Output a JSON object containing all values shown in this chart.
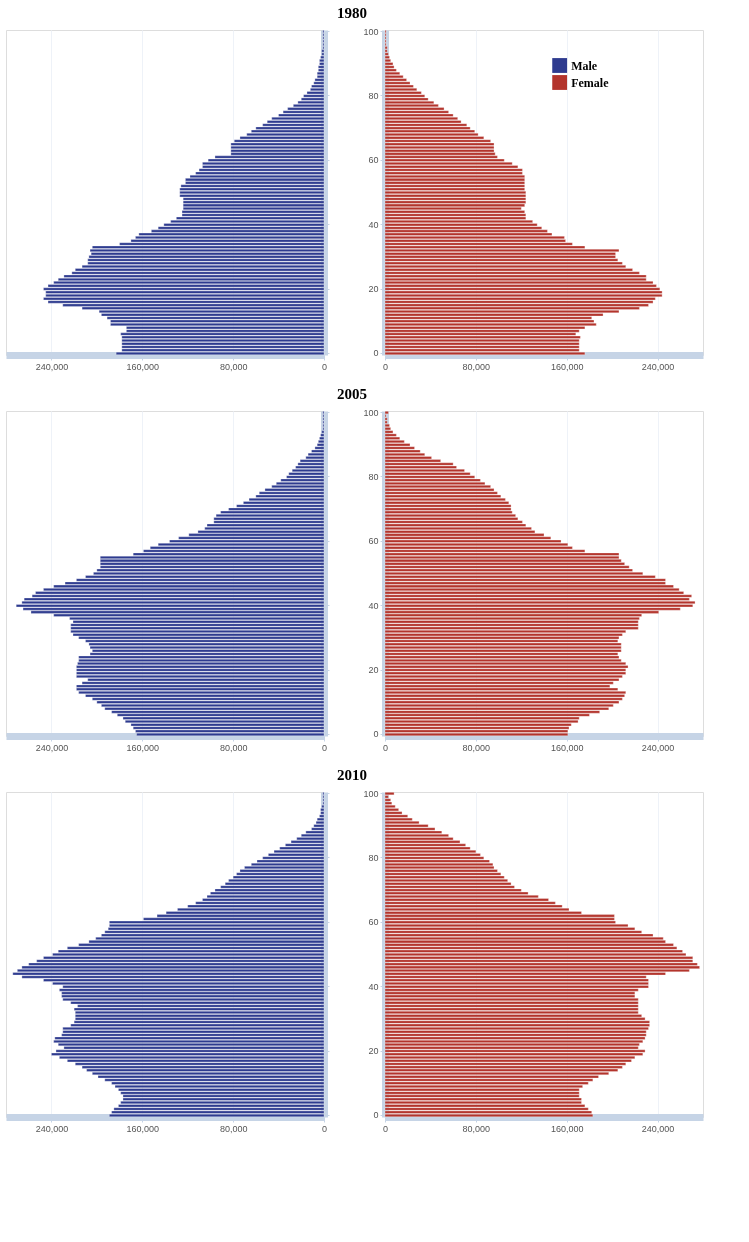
{
  "chart_data": [
    {
      "type": "bar",
      "orientation": "horizontal",
      "legend": "top right",
      "grid": "x",
      "tick_labels": "x",
      "categories": [
        "100",
        null,
        null,
        null,
        null,
        null,
        null,
        null,
        null,
        null,
        null,
        null,
        null,
        null,
        null,
        null,
        null,
        null,
        null,
        null,
        "80",
        null,
        null,
        null,
        null,
        null,
        null,
        null,
        null,
        null,
        null,
        null,
        null,
        null,
        null,
        null,
        null,
        null,
        null,
        null,
        "60",
        null,
        null,
        null,
        null,
        null,
        null,
        null,
        null,
        null,
        null,
        null,
        null,
        null,
        null,
        null,
        null,
        null,
        null,
        null,
        "40",
        null,
        null,
        null,
        null,
        null,
        null,
        null,
        null,
        null,
        null,
        null,
        null,
        null,
        null,
        null,
        null,
        null,
        null,
        null,
        "20",
        null,
        null,
        null,
        null,
        null,
        null,
        null,
        null,
        null,
        null,
        null,
        null,
        null,
        null,
        null,
        null,
        null,
        null,
        null,
        "0"
      ],
      "xlim": [
        280000,
        0
      ],
      "xticks": [
        {
          "value": 240000,
          "label": "240,000"
        },
        {
          "value": 160000,
          "label": "160,000"
        },
        {
          "value": 80000,
          "label": "80,000"
        },
        0
      ],
      "series": [
        {
          "name": "Male",
          "color": "#2e3b8f",
          "values": [
            1000,
            1000,
            1000,
            1000,
            1000,
            1000,
            2000,
            2000,
            3000,
            4000,
            4000,
            5000,
            5000,
            6000,
            6000,
            8000,
            9000,
            11000,
            12000,
            15000,
            18000,
            20000,
            23000,
            27000,
            32000,
            36000,
            40000,
            46000,
            50000,
            54000,
            60000,
            64000,
            68000,
            74000,
            79000,
            82000,
            82000,
            82000,
            82000,
            96000,
            102000,
            107000,
            107000,
            110000,
            113000,
            118000,
            122000,
            122000,
            126000,
            127000,
            127000,
            127000,
            124000,
            124000,
            124000,
            124000,
            125000,
            125000,
            130000,
            135000,
            141000,
            146000,
            152000,
            163000,
            166000,
            170000,
            180000,
            204000,
            206000,
            205000,
            207000,
            208000,
            208000,
            213000,
            219000,
            222000,
            229000,
            234000,
            238000,
            243000,
            247000,
            245000,
            245000,
            247000,
            243000,
            230000,
            213000,
            198000,
            196000,
            191000,
            188000,
            188000,
            174000,
            174000,
            179000,
            178000,
            178000,
            178000,
            178000,
            178000,
            183000
          ]
        }
      ]
    },
    {
      "type": "bar",
      "orientation": "horizontal",
      "legend": "top right",
      "grid": "x",
      "title": "1980",
      "categories": [
        "100",
        null,
        null,
        null,
        null,
        null,
        null,
        null,
        null,
        null,
        null,
        null,
        null,
        null,
        null,
        null,
        null,
        null,
        null,
        null,
        "80",
        null,
        null,
        null,
        null,
        null,
        null,
        null,
        null,
        null,
        null,
        null,
        null,
        null,
        null,
        null,
        null,
        null,
        null,
        null,
        "60",
        null,
        null,
        null,
        null,
        null,
        null,
        null,
        null,
        null,
        null,
        null,
        null,
        null,
        null,
        null,
        null,
        null,
        null,
        null,
        "40",
        null,
        null,
        null,
        null,
        null,
        null,
        null,
        null,
        null,
        null,
        null,
        null,
        null,
        null,
        null,
        null,
        null,
        null,
        null,
        "20",
        null,
        null,
        null,
        null,
        null,
        null,
        null,
        null,
        null,
        null,
        null,
        null,
        null,
        null,
        null,
        null,
        null,
        null,
        null,
        "0"
      ],
      "xlim": [
        0,
        280000
      ],
      "xticks": [
        0,
        {
          "value": 80000,
          "label": "80,000"
        },
        {
          "value": 160000,
          "label": "160,000"
        },
        {
          "value": 240000,
          "label": "240,000"
        }
      ],
      "series": [
        {
          "name": "Female",
          "color": "#b3342c",
          "values": [
            1000,
            1000,
            1000,
            1000,
            1000,
            2000,
            2000,
            3000,
            4000,
            5000,
            7000,
            8000,
            10000,
            13000,
            16000,
            19000,
            22000,
            25000,
            28000,
            32000,
            35000,
            38000,
            43000,
            47000,
            52000,
            56000,
            60000,
            64000,
            67000,
            72000,
            75000,
            79000,
            82000,
            87000,
            93000,
            96000,
            96000,
            96000,
            97000,
            99000,
            105000,
            112000,
            117000,
            121000,
            121000,
            123000,
            123000,
            123000,
            123000,
            123000,
            124000,
            124000,
            124000,
            124000,
            123000,
            120000,
            123000,
            124000,
            124000,
            130000,
            134000,
            138000,
            143000,
            147000,
            158000,
            159000,
            165000,
            176000,
            206000,
            203000,
            203000,
            205000,
            209000,
            212000,
            218000,
            224000,
            230000,
            230000,
            236000,
            239000,
            242000,
            244000,
            244000,
            238000,
            236000,
            232000,
            224000,
            206000,
            192000,
            182000,
            184000,
            186000,
            176000,
            171000,
            168000,
            172000,
            171000,
            171000,
            171000,
            171000,
            176000
          ]
        }
      ]
    },
    {
      "type": "bar",
      "orientation": "horizontal",
      "grid": "x",
      "tick_labels": "x",
      "categories": [
        "100",
        null,
        null,
        null,
        null,
        null,
        null,
        null,
        null,
        null,
        null,
        null,
        null,
        null,
        null,
        null,
        null,
        null,
        null,
        null,
        "80",
        null,
        null,
        null,
        null,
        null,
        null,
        null,
        null,
        null,
        null,
        null,
        null,
        null,
        null,
        null,
        null,
        null,
        null,
        null,
        "60",
        null,
        null,
        null,
        null,
        null,
        null,
        null,
        null,
        null,
        null,
        null,
        null,
        null,
        null,
        null,
        null,
        null,
        null,
        null,
        "40",
        null,
        null,
        null,
        null,
        null,
        null,
        null,
        null,
        null,
        null,
        null,
        null,
        null,
        null,
        null,
        null,
        null,
        null,
        null,
        "20",
        null,
        null,
        null,
        null,
        null,
        null,
        null,
        null,
        null,
        null,
        null,
        null,
        null,
        null,
        null,
        null,
        null,
        null,
        null,
        "0"
      ],
      "xlim": [
        280000,
        0
      ],
      "xticks": [
        {
          "value": 240000,
          "label": "240,000"
        },
        {
          "value": 160000,
          "label": "160,000"
        },
        {
          "value": 80000,
          "label": "80,000"
        },
        0
      ],
      "series": [
        {
          "color": "#2e3b8f",
          "values": [
            1000,
            1000,
            1000,
            1000,
            1000,
            1000,
            2000,
            3000,
            4000,
            5000,
            6000,
            8000,
            11000,
            14000,
            16000,
            21000,
            23000,
            25000,
            28000,
            31000,
            33000,
            38000,
            42000,
            46000,
            52000,
            57000,
            60000,
            66000,
            71000,
            77000,
            84000,
            91000,
            95000,
            97000,
            97000,
            103000,
            105000,
            111000,
            119000,
            128000,
            136000,
            146000,
            153000,
            159000,
            168000,
            197000,
            197000,
            197000,
            197000,
            200000,
            203000,
            210000,
            218000,
            228000,
            238000,
            247000,
            254000,
            257000,
            264000,
            266000,
            271000,
            265000,
            258000,
            238000,
            224000,
            221000,
            223000,
            223000,
            223000,
            221000,
            216000,
            210000,
            207000,
            206000,
            204000,
            206000,
            216000,
            216000,
            217000,
            218000,
            218000,
            218000,
            218000,
            208000,
            213000,
            218000,
            218000,
            216000,
            210000,
            204000,
            200000,
            196000,
            193000,
            187000,
            182000,
            177000,
            175000,
            170000,
            168000,
            166000,
            165000
          ]
        }
      ]
    },
    {
      "type": "bar",
      "orientation": "horizontal",
      "grid": "x",
      "title": "2005",
      "categories": [
        "100",
        null,
        null,
        null,
        null,
        null,
        null,
        null,
        null,
        null,
        null,
        null,
        null,
        null,
        null,
        null,
        null,
        null,
        null,
        null,
        "80",
        null,
        null,
        null,
        null,
        null,
        null,
        null,
        null,
        null,
        null,
        null,
        null,
        null,
        null,
        null,
        null,
        null,
        null,
        null,
        "60",
        null,
        null,
        null,
        null,
        null,
        null,
        null,
        null,
        null,
        null,
        null,
        null,
        null,
        null,
        null,
        null,
        null,
        null,
        null,
        "40",
        null,
        null,
        null,
        null,
        null,
        null,
        null,
        null,
        null,
        null,
        null,
        null,
        null,
        null,
        null,
        null,
        null,
        null,
        null,
        "20",
        null,
        null,
        null,
        null,
        null,
        null,
        null,
        null,
        null,
        null,
        null,
        null,
        null,
        null,
        null,
        null,
        null,
        null,
        null,
        "0"
      ],
      "xlim": [
        0,
        280000
      ],
      "xticks": [
        0,
        {
          "value": 80000,
          "label": "80,000"
        },
        {
          "value": 160000,
          "label": "160,000"
        },
        {
          "value": 240000,
          "label": "240,000"
        }
      ],
      "series": [
        {
          "color": "#b3342c",
          "values": [
            3000,
            1000,
            2000,
            2000,
            4000,
            5000,
            7000,
            10000,
            13000,
            17000,
            22000,
            26000,
            31000,
            35000,
            41000,
            49000,
            60000,
            63000,
            70000,
            75000,
            79000,
            84000,
            88000,
            93000,
            96000,
            99000,
            102000,
            106000,
            109000,
            111000,
            111000,
            112000,
            115000,
            117000,
            121000,
            124000,
            129000,
            132000,
            140000,
            146000,
            155000,
            161000,
            165000,
            176000,
            206000,
            206000,
            208000,
            211000,
            215000,
            218000,
            227000,
            238000,
            247000,
            247000,
            254000,
            259000,
            263000,
            270000,
            268000,
            273000,
            271000,
            260000,
            241000,
            226000,
            224000,
            223000,
            223000,
            223000,
            212000,
            209000,
            206000,
            205000,
            208000,
            208000,
            208000,
            205000,
            206000,
            208000,
            212000,
            214000,
            212000,
            212000,
            209000,
            206000,
            201000,
            198000,
            205000,
            212000,
            211000,
            209000,
            206000,
            201000,
            197000,
            189000,
            180000,
            171000,
            170000,
            164000,
            162000,
            161000,
            161000
          ]
        }
      ]
    },
    {
      "type": "bar",
      "orientation": "horizontal",
      "grid": "x",
      "tick_labels": "x",
      "categories": [
        "100",
        null,
        null,
        null,
        null,
        null,
        null,
        null,
        null,
        null,
        null,
        null,
        null,
        null,
        null,
        null,
        null,
        null,
        null,
        null,
        "80",
        null,
        null,
        null,
        null,
        null,
        null,
        null,
        null,
        null,
        null,
        null,
        null,
        null,
        null,
        null,
        null,
        null,
        null,
        null,
        "60",
        null,
        null,
        null,
        null,
        null,
        null,
        null,
        null,
        null,
        null,
        null,
        null,
        null,
        null,
        null,
        null,
        null,
        null,
        null,
        "40",
        null,
        null,
        null,
        null,
        null,
        null,
        null,
        null,
        null,
        null,
        null,
        null,
        null,
        null,
        null,
        null,
        null,
        null,
        null,
        "20",
        null,
        null,
        null,
        null,
        null,
        null,
        null,
        null,
        null,
        null,
        null,
        null,
        null,
        null,
        null,
        null,
        null,
        null,
        null,
        "0"
      ],
      "xlim": [
        280000,
        0
      ],
      "xticks": [
        {
          "value": 240000,
          "label": "240,000"
        },
        {
          "value": 160000,
          "label": "160,000"
        },
        {
          "value": 80000,
          "label": "80,000"
        },
        0
      ],
      "series": [
        {
          "color": "#2e3b8f",
          "values": [
            1000,
            1000,
            1000,
            1000,
            2000,
            3000,
            3000,
            4000,
            6000,
            7000,
            9000,
            11000,
            16000,
            20000,
            24000,
            29000,
            34000,
            39000,
            44000,
            49000,
            54000,
            59000,
            64000,
            70000,
            74000,
            77000,
            80000,
            84000,
            87000,
            91000,
            96000,
            100000,
            103000,
            107000,
            113000,
            120000,
            129000,
            139000,
            147000,
            159000,
            189000,
            189000,
            190000,
            193000,
            196000,
            201000,
            207000,
            216000,
            226000,
            234000,
            239000,
            247000,
            253000,
            260000,
            266000,
            270000,
            274000,
            266000,
            247000,
            239000,
            230000,
            233000,
            231000,
            231000,
            230000,
            223000,
            217000,
            220000,
            219000,
            219000,
            219000,
            220000,
            223000,
            230000,
            230000,
            231000,
            237000,
            238000,
            234000,
            229000,
            236000,
            240000,
            233000,
            226000,
            219000,
            213000,
            209000,
            204000,
            199000,
            193000,
            187000,
            184000,
            181000,
            179000,
            177000,
            177000,
            179000,
            181000,
            185000,
            187000,
            189000
          ]
        }
      ]
    },
    {
      "type": "bar",
      "orientation": "horizontal",
      "grid": "x",
      "title": "2010",
      "categories": [
        "100",
        null,
        null,
        null,
        null,
        null,
        null,
        null,
        null,
        null,
        null,
        null,
        null,
        null,
        null,
        null,
        null,
        null,
        null,
        null,
        "80",
        null,
        null,
        null,
        null,
        null,
        null,
        null,
        null,
        null,
        null,
        null,
        null,
        null,
        null,
        null,
        null,
        null,
        null,
        null,
        "60",
        null,
        null,
        null,
        null,
        null,
        null,
        null,
        null,
        null,
        null,
        null,
        null,
        null,
        null,
        null,
        null,
        null,
        null,
        null,
        "40",
        null,
        null,
        null,
        null,
        null,
        null,
        null,
        null,
        null,
        null,
        null,
        null,
        null,
        null,
        null,
        null,
        null,
        null,
        null,
        "20",
        null,
        null,
        null,
        null,
        null,
        null,
        null,
        null,
        null,
        null,
        null,
        null,
        null,
        null,
        null,
        null,
        null,
        null,
        null,
        "0"
      ],
      "xlim": [
        0,
        280000
      ],
      "xticks": [
        0,
        {
          "value": 80000,
          "label": "80,000"
        },
        {
          "value": 160000,
          "label": "160,000"
        },
        {
          "value": 240000,
          "label": "240,000"
        }
      ],
      "series": [
        {
          "color": "#b3342c",
          "values": [
            8000,
            3000,
            5000,
            6000,
            9000,
            12000,
            15000,
            20000,
            24000,
            30000,
            38000,
            44000,
            50000,
            56000,
            60000,
            66000,
            71000,
            75000,
            80000,
            84000,
            87000,
            92000,
            95000,
            96000,
            99000,
            102000,
            105000,
            108000,
            111000,
            114000,
            120000,
            126000,
            135000,
            144000,
            150000,
            156000,
            162000,
            173000,
            202000,
            202000,
            203000,
            214000,
            220000,
            226000,
            236000,
            245000,
            247000,
            254000,
            257000,
            262000,
            265000,
            271000,
            271000,
            275000,
            277000,
            268000,
            247000,
            230000,
            232000,
            232000,
            232000,
            223000,
            220000,
            220000,
            223000,
            223000,
            223000,
            223000,
            223000,
            226000,
            229000,
            233000,
            233000,
            232000,
            230000,
            230000,
            229000,
            227000,
            224000,
            223000,
            229000,
            227000,
            220000,
            217000,
            212000,
            209000,
            205000,
            197000,
            188000,
            183000,
            179000,
            174000,
            171000,
            171000,
            171000,
            173000,
            173000,
            176000,
            179000,
            182000,
            183000
          ]
        }
      ]
    }
  ]
}
